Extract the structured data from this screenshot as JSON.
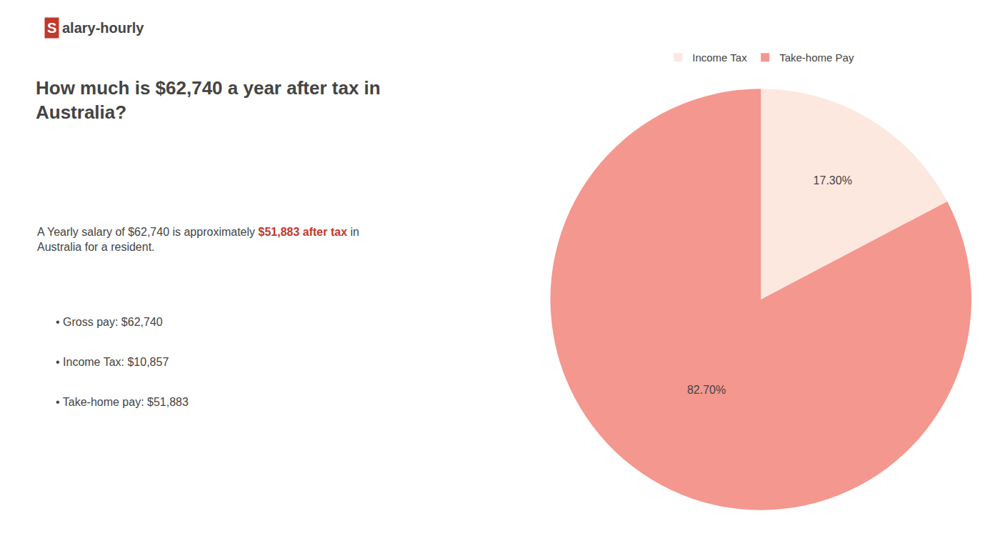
{
  "chart_data": {
    "type": "pie",
    "title": "How much is $62,740 a year after tax in\nAustralia?",
    "annotations": [
      [
        {
          "text": "S",
          "color": "#c0392b"
        },
        {
          "text": "alary-hourly"
        }
      ],
      [
        {
          "text": "A Yearly salary of $62,740 is approximately "
        },
        {
          "text": "$51,883 after tax",
          "color": "#c0392b"
        },
        {
          "text": " in"
        }
      ],
      [
        {
          "text": "Australia for a resident."
        }
      ],
      [
        {
          "text": "• Gross pay: $62,740"
        }
      ],
      [
        {
          "text": "• Income Tax: $10,857"
        }
      ],
      [
        {
          "text": "• Take-home pay: $51,883"
        }
      ]
    ],
    "categories": [
      "Income Tax",
      "Take-home Pay"
    ],
    "values": [
      17.3,
      82.7
    ],
    "value_labels": [
      "17.30%",
      "82.70%"
    ],
    "colors": [
      "#fde8e0",
      "#f4978e"
    ],
    "data_labels": true,
    "legend": "top"
  }
}
